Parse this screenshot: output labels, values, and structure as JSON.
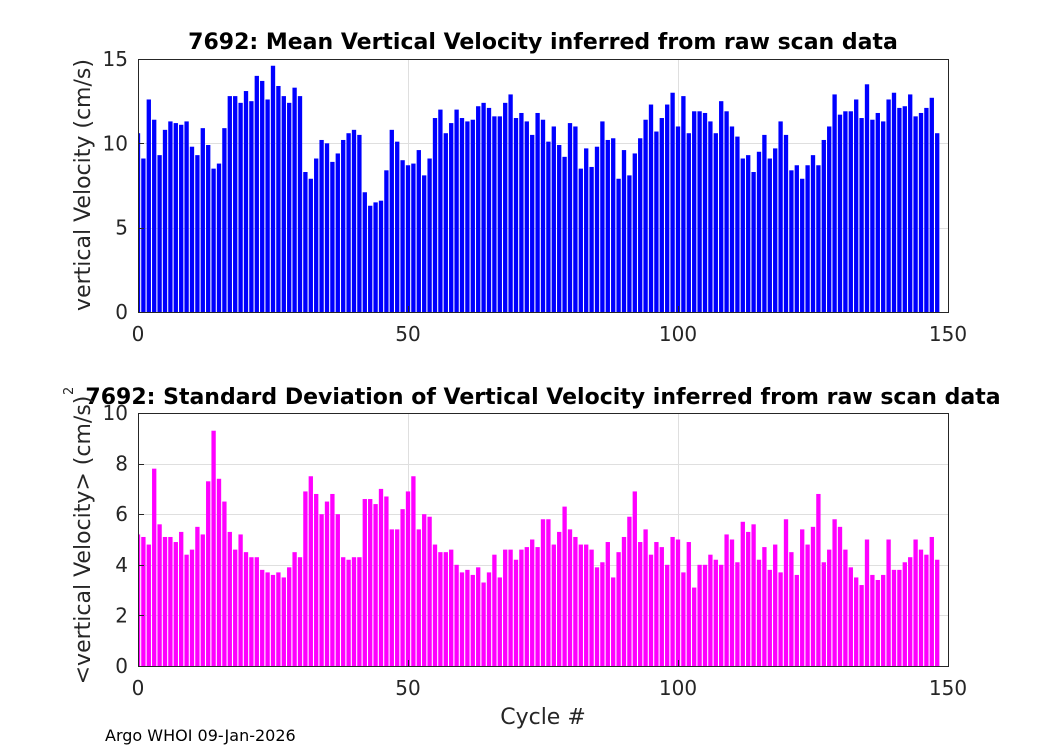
{
  "footer": "Argo WHOI 09-Jan-2026",
  "chart_data": [
    {
      "type": "bar",
      "title": "7692: Mean Vertical Velocity inferred from raw scan data",
      "xlabel": "",
      "ylabel": "vertical Velocity (cm/s)",
      "xlim": [
        0,
        150
      ],
      "ylim": [
        0,
        15
      ],
      "xticks": [
        0,
        50,
        100,
        150
      ],
      "yticks": [
        0,
        5,
        10,
        15
      ],
      "color": "#0000ff",
      "grid": true,
      "x_start": 0,
      "values": [
        10.6,
        9.1,
        12.6,
        11.4,
        9.3,
        10.8,
        11.3,
        11.2,
        11.1,
        11.3,
        9.8,
        9.3,
        10.9,
        9.9,
        8.5,
        8.8,
        10.9,
        12.8,
        12.8,
        12.4,
        13.1,
        12.5,
        14.0,
        13.7,
        12.6,
        14.6,
        13.4,
        12.8,
        12.4,
        13.3,
        12.8,
        8.3,
        7.9,
        9.1,
        10.2,
        10.0,
        8.9,
        9.4,
        10.2,
        10.6,
        10.8,
        10.5,
        7.1,
        6.3,
        6.5,
        6.6,
        8.4,
        10.8,
        10.1,
        9.0,
        8.7,
        8.8,
        9.6,
        8.1,
        9.1,
        11.5,
        12.0,
        10.6,
        11.2,
        12.0,
        11.5,
        11.3,
        11.4,
        12.2,
        12.4,
        12.1,
        11.6,
        11.6,
        12.4,
        12.9,
        11.5,
        11.8,
        11.3,
        10.5,
        11.8,
        11.4,
        10.1,
        11.0,
        9.9,
        9.2,
        11.2,
        11.0,
        8.5,
        9.7,
        8.6,
        9.8,
        11.3,
        10.2,
        10.3,
        7.9,
        9.6,
        8.1,
        9.4,
        10.3,
        11.4,
        12.3,
        10.7,
        11.5,
        12.3,
        13.0,
        11.0,
        12.8,
        10.6,
        11.9,
        11.9,
        11.8,
        11.3,
        10.6,
        12.5,
        11.9,
        11.0,
        10.4,
        9.1,
        9.3,
        8.3,
        9.5,
        10.5,
        9.1,
        9.7,
        11.3,
        10.5,
        8.4,
        8.7,
        7.9,
        8.7,
        9.3,
        8.7,
        10.2,
        11.0,
        12.9,
        11.7,
        11.9,
        11.9,
        12.6,
        11.5,
        13.5,
        11.4,
        11.8,
        11.3,
        12.6,
        13.0,
        12.1,
        12.2,
        12.9,
        11.6,
        11.8,
        12.1,
        12.7,
        10.6
      ]
    },
    {
      "type": "bar",
      "title": "7692: Standard Deviation of Vertical Velocity inferred from raw scan data",
      "xlabel": "Cycle #",
      "ylabel": "<vertical Velocity> (cm/s)",
      "ylabel_superscript": "2",
      "xlim": [
        0,
        150
      ],
      "ylim": [
        0,
        10
      ],
      "xticks": [
        0,
        50,
        100,
        150
      ],
      "yticks": [
        0,
        2,
        4,
        6,
        8,
        10
      ],
      "color": "#ff00ff",
      "grid": true,
      "x_start": 0,
      "values": [
        5.2,
        5.1,
        4.8,
        7.8,
        5.6,
        5.1,
        5.1,
        4.9,
        5.3,
        4.4,
        4.6,
        5.5,
        5.2,
        7.3,
        9.3,
        7.4,
        6.5,
        5.3,
        4.6,
        5.2,
        4.5,
        4.3,
        4.3,
        3.8,
        3.7,
        3.6,
        3.7,
        3.5,
        3.9,
        4.5,
        4.3,
        6.9,
        7.5,
        6.8,
        6.0,
        6.5,
        6.8,
        6.0,
        4.3,
        4.2,
        4.3,
        4.3,
        6.6,
        6.6,
        6.4,
        7.0,
        6.7,
        5.4,
        5.4,
        6.2,
        6.9,
        7.5,
        5.4,
        6.0,
        5.9,
        4.8,
        4.5,
        4.5,
        4.6,
        4.0,
        3.7,
        3.8,
        3.6,
        3.9,
        3.3,
        3.7,
        4.4,
        3.5,
        4.6,
        4.6,
        4.2,
        4.6,
        4.7,
        5.0,
        4.7,
        5.8,
        5.8,
        4.8,
        5.3,
        6.3,
        5.4,
        5.1,
        4.8,
        4.8,
        4.6,
        3.9,
        4.1,
        4.9,
        3.5,
        4.5,
        5.1,
        5.9,
        6.9,
        4.9,
        5.4,
        4.4,
        4.9,
        4.7,
        4.0,
        5.1,
        5.0,
        3.7,
        4.9,
        3.1,
        4.0,
        4.0,
        4.4,
        4.2,
        4.0,
        5.2,
        5.0,
        4.1,
        5.7,
        5.3,
        5.6,
        4.2,
        4.7,
        3.8,
        4.8,
        3.7,
        5.8,
        4.5,
        3.6,
        5.4,
        4.8,
        5.5,
        6.8,
        4.1,
        4.6,
        5.8,
        5.5,
        4.6,
        3.9,
        3.5,
        3.2,
        5.0,
        3.6,
        3.4,
        3.6,
        5.0,
        3.8,
        3.8,
        4.1,
        4.3,
        5.0,
        4.6,
        4.4,
        5.1,
        4.2
      ]
    }
  ]
}
